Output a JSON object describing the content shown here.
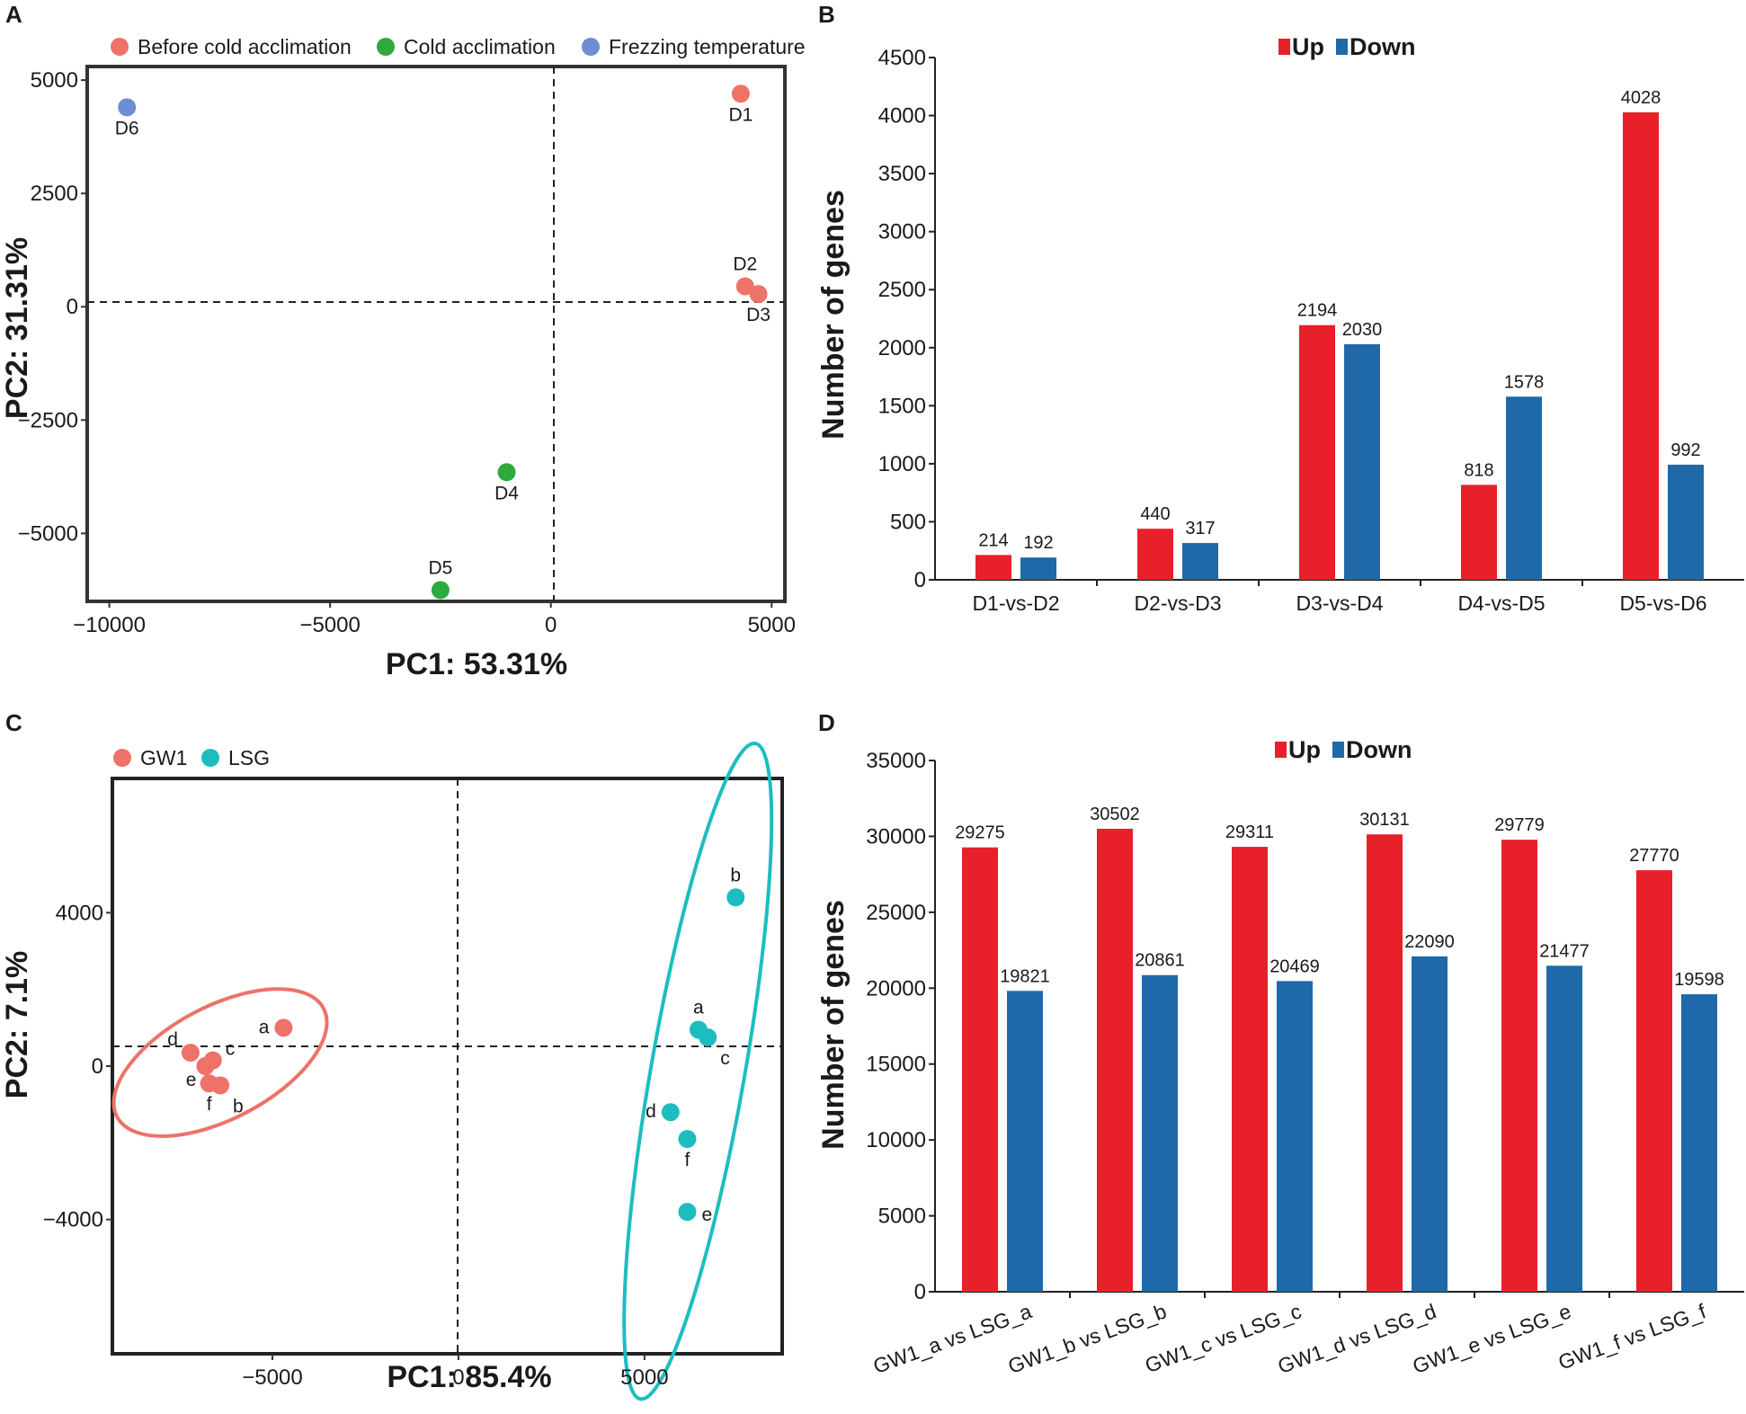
{
  "chart_data": [
    {
      "panel": "A",
      "type": "scatter",
      "xlabel": "PC1: 53.31%",
      "ylabel": "PC2: 31.31%",
      "xlim": [
        -10500,
        5300
      ],
      "ylim": [
        -6500,
        5300
      ],
      "xticks": [
        -10000,
        -5000,
        0,
        5000
      ],
      "yticks": [
        5000,
        2500,
        0,
        -2500,
        -5000
      ],
      "xtick_labels": [
        "−10000",
        "−5000",
        "0",
        "5000"
      ],
      "ytick_labels": [
        "5000",
        "2500",
        "0",
        "−2500",
        "−5000"
      ],
      "legend": [
        {
          "label": "Before cold acclimation",
          "color": "#EE7268"
        },
        {
          "label": "Cold acclimation",
          "color": "#2DAA3D"
        },
        {
          "label": "Frezzing temperature",
          "color": "#6F8DD2"
        }
      ],
      "points": [
        {
          "label": "D1",
          "x": 4300,
          "y": 4700,
          "group": 0,
          "label_pos": "below"
        },
        {
          "label": "D2",
          "x": 4400,
          "y": 450,
          "group": 0,
          "label_pos": "above"
        },
        {
          "label": "D3",
          "x": 4700,
          "y": 280,
          "group": 0,
          "label_pos": "below"
        },
        {
          "label": "D4",
          "x": -1000,
          "y": -3650,
          "group": 1,
          "label_pos": "below"
        },
        {
          "label": "D5",
          "x": -2500,
          "y": -6250,
          "group": 1,
          "label_pos": "above"
        },
        {
          "label": "D6",
          "x": -9600,
          "y": 4400,
          "group": 2,
          "label_pos": "below"
        }
      ]
    },
    {
      "panel": "B",
      "type": "bar",
      "ylabel": "Number of genes",
      "ylim": [
        0,
        4500
      ],
      "yticks": [
        0,
        500,
        1000,
        1500,
        2000,
        2500,
        3000,
        3500,
        4000,
        4500
      ],
      "categories": [
        "D1-vs-D2",
        "D2-vs-D3",
        "D3-vs-D4",
        "D4-vs-D5",
        "D5-vs-D6"
      ],
      "series": [
        {
          "name": "Up",
          "color": "#E8202A",
          "values": [
            214,
            440,
            2194,
            818,
            4028
          ]
        },
        {
          "name": "Down",
          "color": "#1F69A8",
          "values": [
            192,
            317,
            2030,
            1578,
            992
          ]
        }
      ]
    },
    {
      "panel": "C",
      "type": "scatter",
      "xlabel": "PC1: 85.4%",
      "ylabel": "PC2: 7.1%",
      "xlim": [
        -9300,
        8700
      ],
      "ylim": [
        -7500,
        7500
      ],
      "xticks": [
        -5000,
        0,
        5000
      ],
      "yticks": [
        4000,
        0,
        -4000
      ],
      "xtick_labels": [
        "−5000",
        "0",
        "5000"
      ],
      "ytick_labels": [
        "4000",
        "0",
        "−4000"
      ],
      "legend": [
        {
          "label": "GW1",
          "color": "#EE7268"
        },
        {
          "label": "LSG",
          "color": "#1DBDBF"
        }
      ],
      "points": [
        {
          "label": "a",
          "x": -4700,
          "y": 1000,
          "group": 0,
          "label_pos": "left"
        },
        {
          "label": "b",
          "x": -6400,
          "y": -500,
          "group": 0,
          "label_pos": "below-right"
        },
        {
          "label": "c",
          "x": -6600,
          "y": 150,
          "group": 0,
          "label_pos": "above-right"
        },
        {
          "label": "d",
          "x": -7200,
          "y": 350,
          "group": 0,
          "label_pos": "above-left"
        },
        {
          "label": "e",
          "x": -6800,
          "y": 0,
          "group": 0,
          "label_pos": "below-left"
        },
        {
          "label": "f",
          "x": -6700,
          "y": -450,
          "group": 0,
          "label_pos": "below"
        },
        {
          "label": "a",
          "x": 6450,
          "y": 950,
          "group": 1,
          "label_pos": "above"
        },
        {
          "label": "b",
          "x": 7450,
          "y": 4400,
          "group": 1,
          "label_pos": "above"
        },
        {
          "label": "c",
          "x": 6700,
          "y": 750,
          "group": 1,
          "label_pos": "below-right"
        },
        {
          "label": "d",
          "x": 5700,
          "y": -1200,
          "group": 1,
          "label_pos": "left"
        },
        {
          "label": "e",
          "x": 6150,
          "y": -3800,
          "group": 1,
          "label_pos": "right"
        },
        {
          "label": "f",
          "x": 6150,
          "y": -1900,
          "group": 1,
          "label_pos": "below"
        }
      ]
    },
    {
      "panel": "D",
      "type": "bar",
      "ylabel": "Number of genes",
      "ylim": [
        0,
        35000
      ],
      "yticks": [
        0,
        5000,
        10000,
        15000,
        20000,
        25000,
        30000,
        35000
      ],
      "categories": [
        "GW1_a vs LSG_a",
        "GW1_b vs LSG_b",
        "GW1_c vs LSG_c",
        "GW1_d vs LSG_d",
        "GW1_e vs LSG_e",
        "GW1_f vs LSG_f"
      ],
      "series": [
        {
          "name": "Up",
          "color": "#E8202A",
          "values": [
            29275,
            30502,
            29311,
            30131,
            29779,
            27770
          ]
        },
        {
          "name": "Down",
          "color": "#1F69A8",
          "values": [
            19821,
            20861,
            20469,
            22090,
            21477,
            19598
          ]
        }
      ]
    }
  ]
}
